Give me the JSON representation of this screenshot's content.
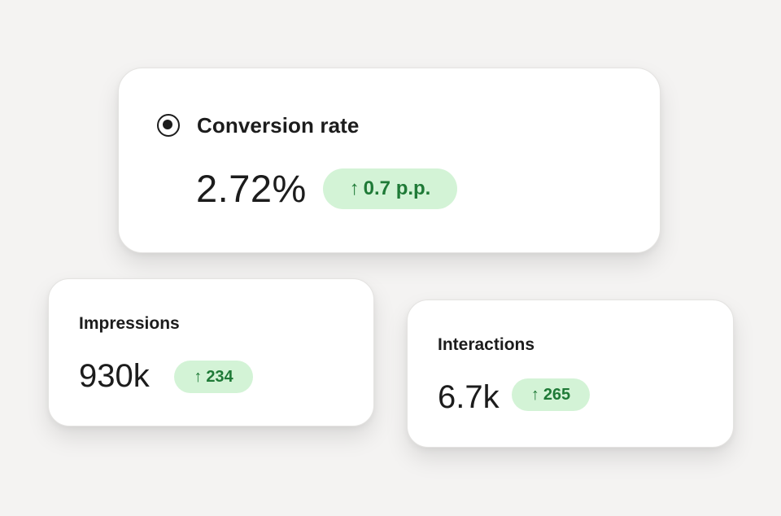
{
  "colors": {
    "background": "#f4f3f2",
    "card": "#ffffff",
    "text": "#1c1c1c",
    "badge_background": "#d3f3d6",
    "badge_text": "#1f7a37"
  },
  "conversion": {
    "title": "Conversion rate",
    "value": "2.72%",
    "change_arrow": "↑",
    "change": "0.7 p.p.",
    "icon": "radio-selected-icon"
  },
  "impressions": {
    "title": "Impressions",
    "value": "930k",
    "change_arrow": "↑",
    "change": "234"
  },
  "interactions": {
    "title": "Interactions",
    "value": "6.7k",
    "change_arrow": "↑",
    "change": "265"
  }
}
